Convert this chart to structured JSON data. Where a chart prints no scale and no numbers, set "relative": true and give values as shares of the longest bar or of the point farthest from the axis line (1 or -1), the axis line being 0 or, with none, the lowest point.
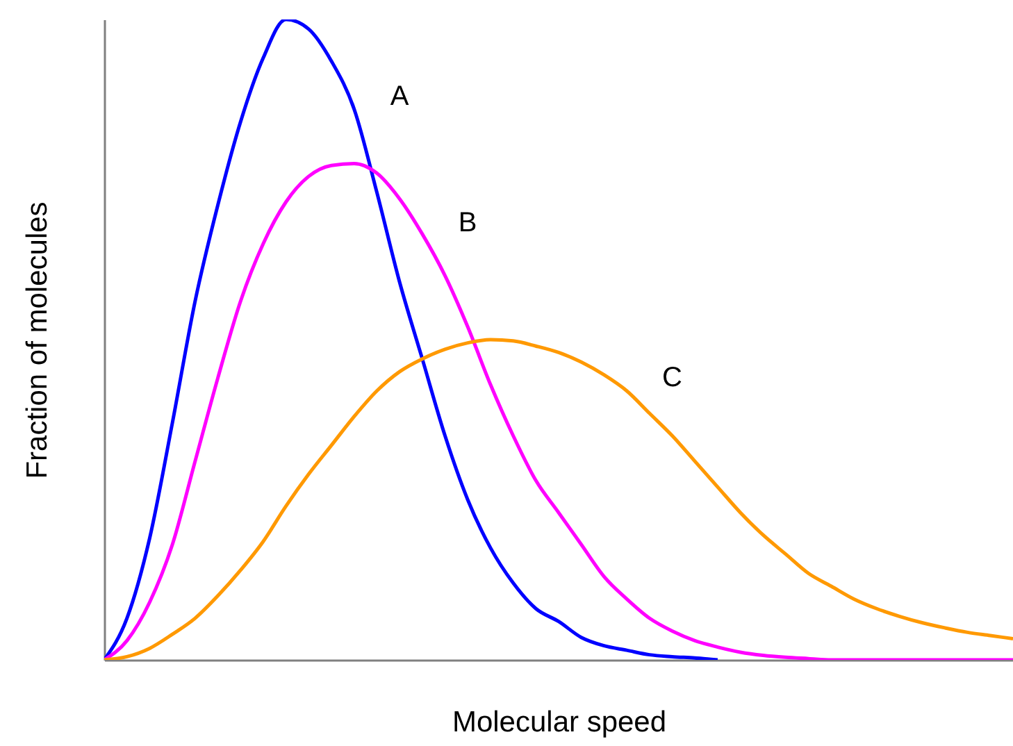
{
  "chart_data": {
    "type": "line",
    "relative": true,
    "xlabel": "Molecular speed",
    "ylabel": "Fraction of molecules",
    "categories": [
      null,
      null,
      null,
      null,
      null,
      null,
      null,
      null,
      null,
      null,
      null,
      null,
      null,
      null,
      null,
      null,
      null,
      null,
      null,
      null,
      null,
      null,
      null,
      null,
      null,
      null,
      null,
      null,
      null,
      null,
      null,
      null,
      null,
      null,
      null,
      null,
      null,
      null,
      null,
      null,
      null
    ],
    "series": [
      {
        "name": "A",
        "color": "#0000ff",
        "values": [
          0,
          0.065,
          0.19,
          0.37,
          0.56,
          0.71,
          0.84,
          0.94,
          1,
          0.985,
          0.935,
          0.86,
          0.73,
          0.59,
          0.47,
          0.35,
          0.25,
          0.175,
          0.12,
          0.08,
          0.06,
          0.035,
          0.022,
          0.015,
          0.008,
          0.005,
          0.003,
          0,
          null,
          null,
          null,
          null,
          null,
          null,
          null,
          null,
          null,
          null,
          null,
          null,
          null
        ]
      },
      {
        "name": "B",
        "color": "#ff00ff",
        "values": [
          0,
          0.03,
          0.09,
          0.18,
          0.31,
          0.44,
          0.56,
          0.65,
          0.715,
          0.755,
          0.772,
          0.775,
          0.76,
          0.72,
          0.665,
          0.6,
          0.52,
          0.43,
          0.35,
          0.28,
          0.23,
          0.18,
          0.13,
          0.095,
          0.065,
          0.045,
          0.03,
          0.02,
          0.012,
          0.007,
          0.004,
          0.002,
          0,
          0,
          0,
          0,
          0,
          0,
          0,
          0,
          0
        ]
      },
      {
        "name": "C",
        "color": "#ff9900",
        "values": [
          0,
          0.005,
          0.018,
          0.04,
          0.065,
          0.1,
          0.14,
          0.185,
          0.24,
          0.29,
          0.335,
          0.38,
          0.42,
          0.45,
          0.47,
          0.485,
          0.495,
          0.5,
          0.498,
          0.49,
          0.48,
          0.465,
          0.445,
          0.42,
          0.385,
          0.35,
          0.31,
          0.27,
          0.23,
          0.195,
          0.165,
          0.135,
          0.115,
          0.095,
          0.08,
          0.068,
          0.058,
          0.05,
          0.043,
          0.038,
          0.033
        ]
      }
    ]
  }
}
